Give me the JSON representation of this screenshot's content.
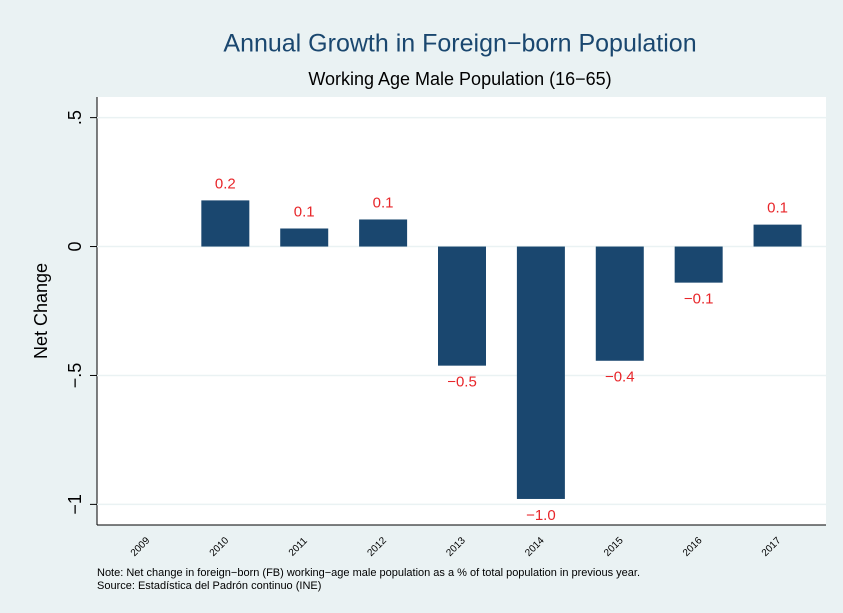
{
  "chart_data": {
    "type": "bar",
    "title": "Annual Growth in Foreign−born Population",
    "subtitle": "Working Age Male Population (16−65)",
    "y_label": "Net Change",
    "notes": [
      "Note: Net change in foreign−born (FB) working−age male population as a % of total population in previous year.",
      "Source: Estadística del Padrón continuo (INE)"
    ],
    "categories": [
      "2009",
      "2010",
      "2011",
      "2012",
      "2013",
      "2014",
      "2015",
      "2016",
      "2017"
    ],
    "values": [
      null,
      0.179,
      0.07,
      0.105,
      -0.462,
      -0.979,
      -0.443,
      -0.14,
      0.085
    ],
    "value_labels": [
      null,
      "0.2",
      "0.1",
      "0.1",
      "−0.5",
      "−1.0",
      "−0.4",
      "−0.1",
      "0.1"
    ],
    "color": "#1a476f",
    "label_color": "#e8262a",
    "ylim": [
      -1.08,
      0.58
    ],
    "yticks": [
      {
        "value": 0.5,
        "label": ".5"
      },
      0,
      {
        "value": -0.5,
        "label": "−.5"
      },
      {
        "value": -1,
        "label": "−1"
      }
    ],
    "grid": true
  }
}
